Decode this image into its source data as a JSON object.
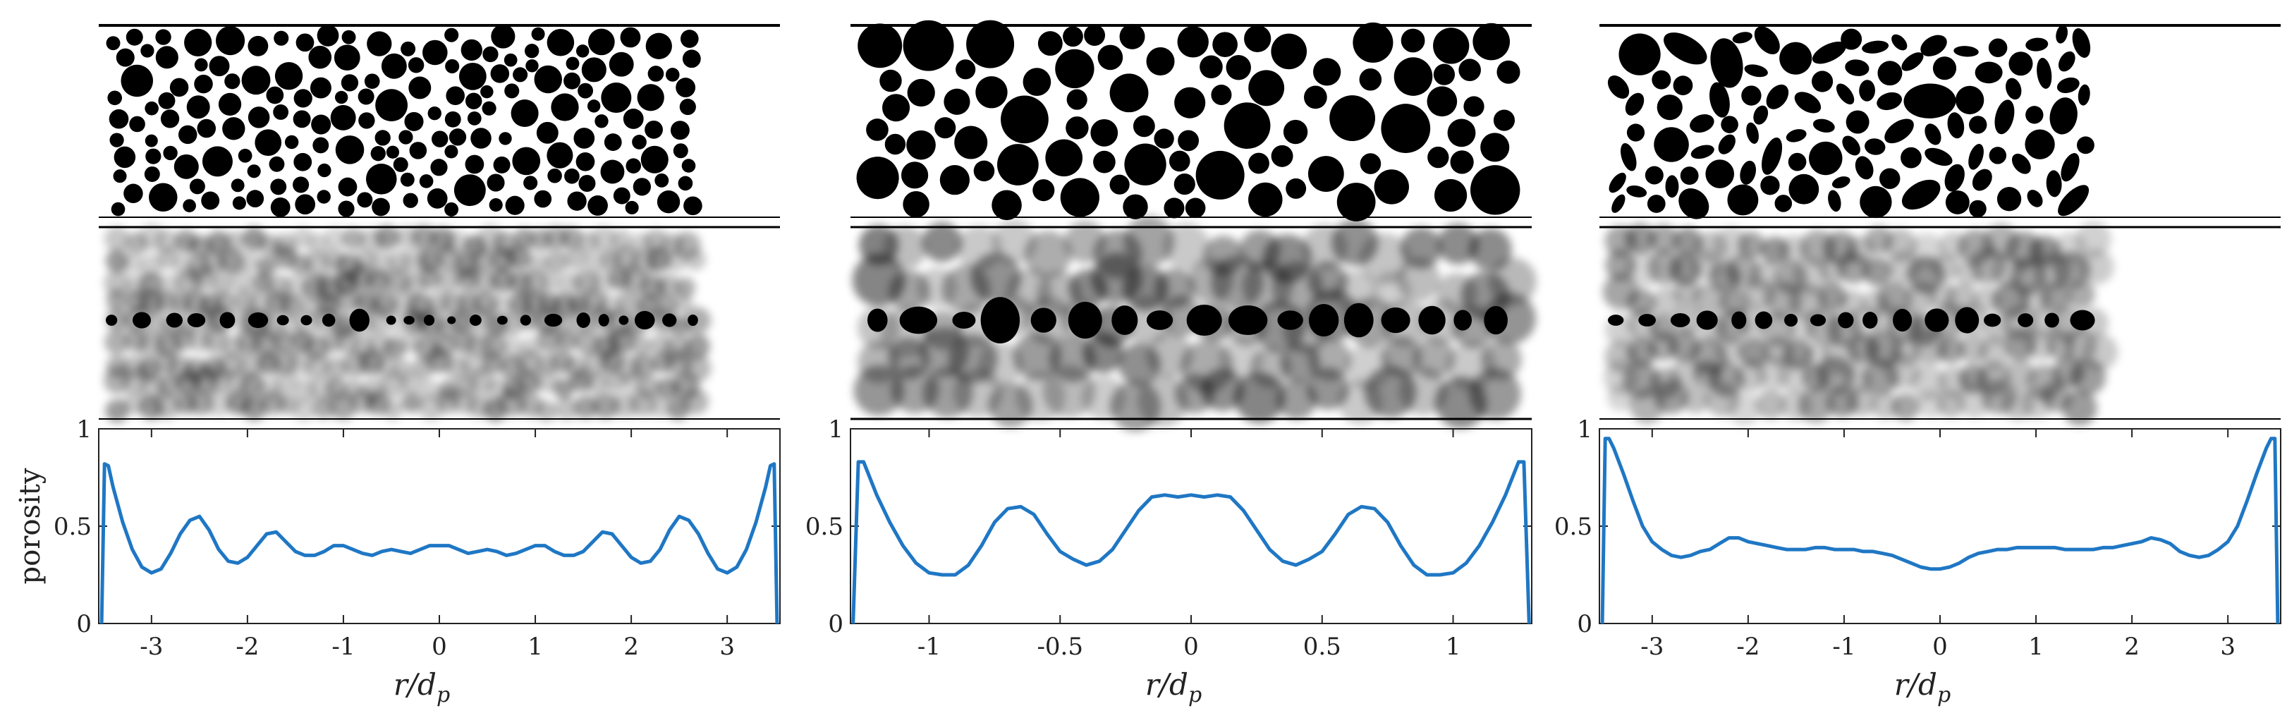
{
  "figure": {
    "ylabel": "porosity",
    "xlabel_main": "r/d",
    "xlabel_sub": "p",
    "line_color": "#1f77c4",
    "panel_labels_shown": false
  },
  "chart_data": [
    {
      "type": "line",
      "title": "",
      "xlabel": "r/d_p",
      "ylabel": "porosity",
      "xlim": [
        -3.55,
        3.55
      ],
      "ylim": [
        0,
        1
      ],
      "xticks": [
        -3,
        -2,
        -1,
        0,
        1,
        2,
        3
      ],
      "xtick_labels": [
        "-3",
        "-2",
        "-1",
        "0",
        "1",
        "2",
        "3"
      ],
      "yticks": [
        0,
        0.5,
        1
      ],
      "ytick_labels": [
        "0",
        "0.5",
        "1"
      ],
      "grid": false,
      "series": [
        {
          "x": [
            -3.52,
            -3.49,
            -3.45,
            -3.4,
            -3.3,
            -3.2,
            -3.1,
            -3.0,
            -2.9,
            -2.8,
            -2.7,
            -2.6,
            -2.5,
            -2.4,
            -2.3,
            -2.2,
            -2.1,
            -2.0,
            -1.9,
            -1.8,
            -1.7,
            -1.6,
            -1.5,
            -1.4,
            -1.3,
            -1.2,
            -1.1,
            -1.0,
            -0.9,
            -0.8,
            -0.7,
            -0.6,
            -0.5,
            -0.4,
            -0.3,
            -0.2,
            -0.1,
            0.0,
            0.1,
            0.2,
            0.3,
            0.4,
            0.5,
            0.6,
            0.7,
            0.8,
            0.9,
            1.0,
            1.1,
            1.2,
            1.3,
            1.4,
            1.5,
            1.6,
            1.7,
            1.8,
            1.9,
            2.0,
            2.1,
            2.2,
            2.3,
            2.4,
            2.5,
            2.6,
            2.7,
            2.8,
            2.9,
            3.0,
            3.1,
            3.2,
            3.3,
            3.4,
            3.45,
            3.49,
            3.52
          ],
          "y": [
            0.0,
            0.82,
            0.81,
            0.7,
            0.52,
            0.38,
            0.29,
            0.26,
            0.28,
            0.36,
            0.46,
            0.53,
            0.55,
            0.48,
            0.38,
            0.32,
            0.31,
            0.34,
            0.4,
            0.46,
            0.47,
            0.42,
            0.37,
            0.35,
            0.35,
            0.37,
            0.4,
            0.4,
            0.38,
            0.36,
            0.35,
            0.37,
            0.38,
            0.37,
            0.36,
            0.38,
            0.4,
            0.4,
            0.4,
            0.38,
            0.36,
            0.37,
            0.38,
            0.37,
            0.35,
            0.36,
            0.38,
            0.4,
            0.4,
            0.37,
            0.35,
            0.35,
            0.37,
            0.42,
            0.47,
            0.46,
            0.4,
            0.34,
            0.31,
            0.32,
            0.38,
            0.48,
            0.55,
            0.53,
            0.46,
            0.36,
            0.28,
            0.26,
            0.29,
            0.38,
            0.52,
            0.7,
            0.81,
            0.82,
            0.0
          ]
        }
      ]
    },
    {
      "type": "line",
      "title": "",
      "xlabel": "r/d_p",
      "ylabel": "",
      "xlim": [
        -1.3,
        1.3
      ],
      "ylim": [
        0,
        1
      ],
      "xticks": [
        -1,
        -0.5,
        0,
        0.5,
        1
      ],
      "xtick_labels": [
        "-1",
        "-0.5",
        "0",
        "0.5",
        "1"
      ],
      "yticks": [
        0,
        0.5,
        1
      ],
      "ytick_labels": [
        "0",
        "0.5",
        "1"
      ],
      "grid": false,
      "series": [
        {
          "x": [
            -1.29,
            -1.27,
            -1.25,
            -1.2,
            -1.15,
            -1.1,
            -1.05,
            -1.0,
            -0.95,
            -0.9,
            -0.85,
            -0.8,
            -0.75,
            -0.7,
            -0.65,
            -0.6,
            -0.55,
            -0.5,
            -0.45,
            -0.4,
            -0.35,
            -0.3,
            -0.25,
            -0.2,
            -0.15,
            -0.1,
            -0.05,
            0.0,
            0.05,
            0.1,
            0.15,
            0.2,
            0.25,
            0.3,
            0.35,
            0.4,
            0.45,
            0.5,
            0.55,
            0.6,
            0.65,
            0.7,
            0.75,
            0.8,
            0.85,
            0.9,
            0.95,
            1.0,
            1.05,
            1.1,
            1.15,
            1.2,
            1.25,
            1.27,
            1.29
          ],
          "y": [
            0.0,
            0.83,
            0.83,
            0.66,
            0.52,
            0.4,
            0.31,
            0.26,
            0.25,
            0.25,
            0.3,
            0.4,
            0.52,
            0.59,
            0.6,
            0.56,
            0.46,
            0.37,
            0.33,
            0.3,
            0.32,
            0.38,
            0.48,
            0.58,
            0.65,
            0.66,
            0.65,
            0.66,
            0.65,
            0.66,
            0.65,
            0.58,
            0.48,
            0.38,
            0.32,
            0.3,
            0.33,
            0.37,
            0.46,
            0.56,
            0.6,
            0.59,
            0.52,
            0.4,
            0.3,
            0.25,
            0.25,
            0.26,
            0.31,
            0.4,
            0.52,
            0.66,
            0.83,
            0.83,
            0.0
          ]
        }
      ]
    },
    {
      "type": "line",
      "title": "",
      "xlabel": "r/d_p",
      "ylabel": "",
      "xlim": [
        -3.55,
        3.55
      ],
      "ylim": [
        0,
        1
      ],
      "xticks": [
        -3,
        -2,
        -1,
        0,
        1,
        2,
        3
      ],
      "xtick_labels": [
        "-3",
        "-2",
        "-1",
        "0",
        "1",
        "2",
        "3"
      ],
      "yticks": [
        0,
        0.5,
        1
      ],
      "ytick_labels": [
        "0",
        "0.5",
        "1"
      ],
      "grid": false,
      "series": [
        {
          "x": [
            -3.52,
            -3.49,
            -3.45,
            -3.4,
            -3.3,
            -3.2,
            -3.1,
            -3.0,
            -2.9,
            -2.8,
            -2.7,
            -2.6,
            -2.5,
            -2.4,
            -2.3,
            -2.2,
            -2.1,
            -2.0,
            -1.9,
            -1.8,
            -1.7,
            -1.6,
            -1.5,
            -1.4,
            -1.3,
            -1.2,
            -1.1,
            -1.0,
            -0.9,
            -0.8,
            -0.7,
            -0.6,
            -0.5,
            -0.4,
            -0.3,
            -0.2,
            -0.1,
            0.0,
            0.1,
            0.2,
            0.3,
            0.4,
            0.5,
            0.6,
            0.7,
            0.8,
            0.9,
            1.0,
            1.1,
            1.2,
            1.3,
            1.4,
            1.5,
            1.6,
            1.7,
            1.8,
            1.9,
            2.0,
            2.1,
            2.2,
            2.3,
            2.4,
            2.5,
            2.6,
            2.7,
            2.8,
            2.9,
            3.0,
            3.1,
            3.2,
            3.3,
            3.4,
            3.45,
            3.49,
            3.52
          ],
          "y": [
            0.0,
            0.95,
            0.95,
            0.9,
            0.77,
            0.63,
            0.5,
            0.42,
            0.38,
            0.35,
            0.34,
            0.35,
            0.37,
            0.38,
            0.41,
            0.44,
            0.44,
            0.42,
            0.41,
            0.4,
            0.39,
            0.38,
            0.38,
            0.38,
            0.39,
            0.39,
            0.38,
            0.38,
            0.38,
            0.37,
            0.37,
            0.36,
            0.35,
            0.33,
            0.31,
            0.29,
            0.28,
            0.28,
            0.29,
            0.31,
            0.34,
            0.36,
            0.37,
            0.38,
            0.38,
            0.39,
            0.39,
            0.39,
            0.39,
            0.39,
            0.38,
            0.38,
            0.38,
            0.38,
            0.39,
            0.39,
            0.4,
            0.41,
            0.42,
            0.44,
            0.43,
            0.41,
            0.37,
            0.35,
            0.34,
            0.35,
            0.38,
            0.42,
            0.5,
            0.63,
            0.77,
            0.9,
            0.95,
            0.95,
            0.0
          ]
        }
      ]
    }
  ]
}
